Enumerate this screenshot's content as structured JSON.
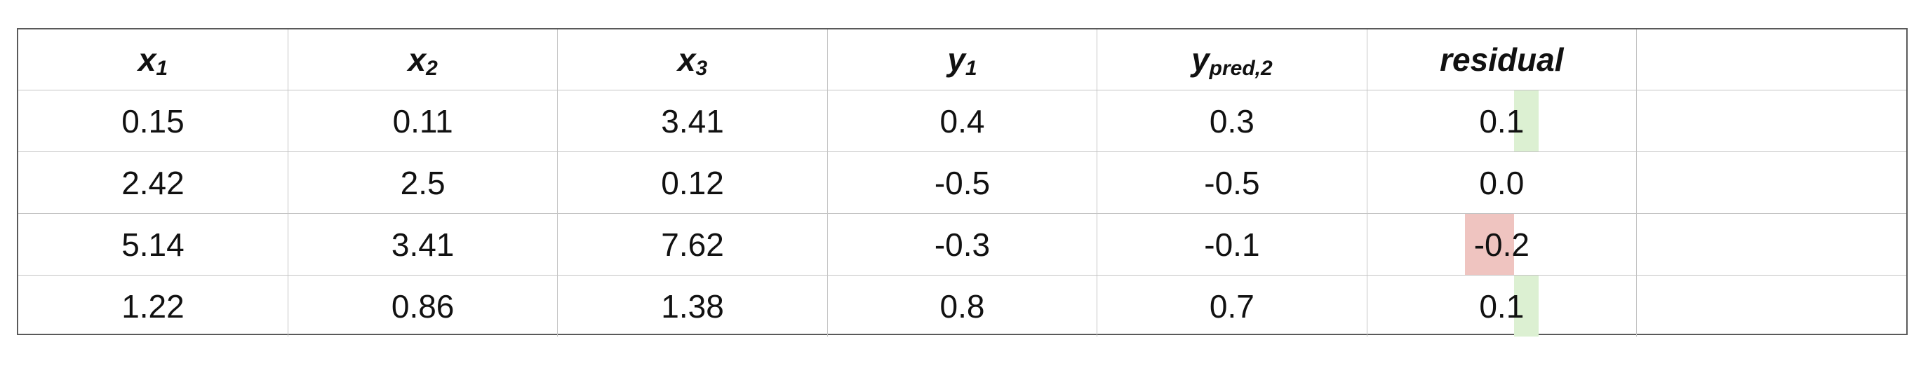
{
  "table": {
    "headers": [
      {
        "base": "x",
        "sub": "1"
      },
      {
        "base": "x",
        "sub": "2"
      },
      {
        "base": "x",
        "sub": "3"
      },
      {
        "base": "y",
        "sub": "1"
      },
      {
        "base": "y",
        "sub": "pred,2"
      },
      {
        "base": "residual",
        "sub": ""
      },
      {
        "base": "",
        "sub": ""
      }
    ],
    "rows": [
      {
        "cells": [
          "0.15",
          "0.11",
          "3.41",
          "0.4",
          "0.3",
          "0.1",
          ""
        ],
        "residual_value": 0.1
      },
      {
        "cells": [
          "2.42",
          "2.5",
          "0.12",
          "-0.5",
          "-0.5",
          "0.0",
          ""
        ],
        "residual_value": 0.0
      },
      {
        "cells": [
          "5.14",
          "3.41",
          "7.62",
          "-0.3",
          "-0.1",
          "-0.2",
          ""
        ],
        "residual_value": -0.2
      },
      {
        "cells": [
          "1.22",
          "0.86",
          "1.38",
          "0.8",
          "0.7",
          "0.1",
          ""
        ],
        "residual_value": 0.1
      }
    ]
  },
  "colors": {
    "positive_residual": "#dcf0d2",
    "negative_residual": "#efc4c0"
  }
}
